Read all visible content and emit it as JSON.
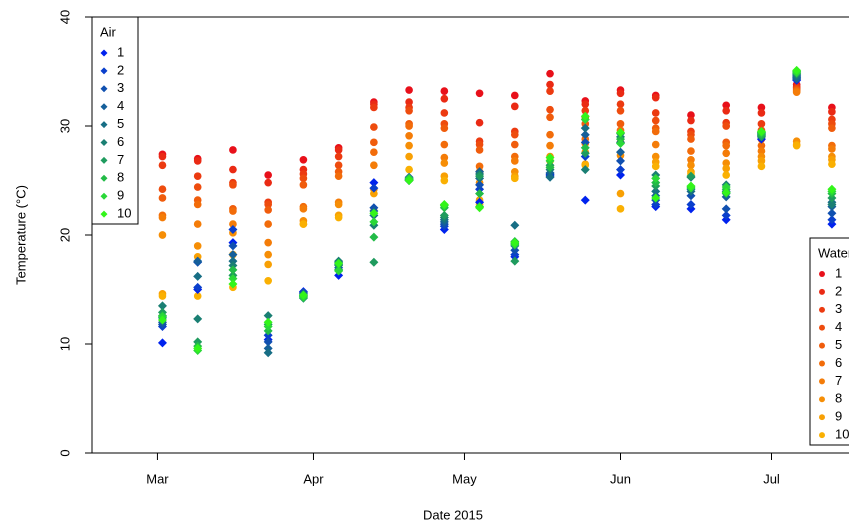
{
  "chart_data": {
    "type": "scatter",
    "x_label": "Date 2015",
    "y_label": "Temperature (°C)",
    "x": [
      "2015-03-02",
      "2015-03-09",
      "2015-03-16",
      "2015-03-23",
      "2015-03-30",
      "2015-04-06",
      "2015-04-13",
      "2015-04-20",
      "2015-04-27",
      "2015-05-04",
      "2015-05-11",
      "2015-05-18",
      "2015-05-25",
      "2015-06-01",
      "2015-06-08",
      "2015-06-15",
      "2015-06-22",
      "2015-06-29",
      "2015-07-06",
      "2015-07-13"
    ],
    "xlim": [
      "2015-02-16",
      "2015-07-16"
    ],
    "xticks": [
      {
        "value": "2015-03-01",
        "label": "Mar"
      },
      {
        "value": "2015-04-01",
        "label": "Apr"
      },
      {
        "value": "2015-05-01",
        "label": "May"
      },
      {
        "value": "2015-06-01",
        "label": "Jun"
      },
      {
        "value": "2015-07-01",
        "label": "Jul"
      }
    ],
    "ylim": [
      0,
      40
    ],
    "yticks": [
      0,
      10,
      20,
      30,
      40
    ],
    "series_groups": [
      {
        "title": "Water",
        "marker": "circle",
        "legend": "right",
        "series": [
          {
            "name": "1",
            "color": "#e8101a",
            "values": [
              27.4,
              27,
              27.8,
              25.5,
              26.9,
              28,
              32.2,
              33.3,
              33.2,
              33,
              32.8,
              34.8,
              32.3,
              33.3,
              32.8,
              31,
              31.9,
              31.7,
              33.8,
              31.7
            ]
          },
          {
            "name": "2",
            "color": "#ea2a14",
            "values": [
              27.2,
              26.8,
              26,
              24.8,
              26,
              27.8,
              32,
              32.2,
              32.5,
              30.3,
              31.8,
              33.8,
              32,
              33,
              32.6,
              30.5,
              31.4,
              31.2,
              33.6,
              31.3
            ]
          },
          {
            "name": "3",
            "color": "#ec3a10",
            "values": [
              26.4,
              25.4,
              24.8,
              23,
              25.6,
              27.2,
              31.7,
              31.7,
              31.2,
              28.6,
              29.5,
              33.2,
              31.4,
              32,
              31.2,
              29.5,
              30.3,
              30.2,
              33.5,
              30.6
            ]
          },
          {
            "name": "4",
            "color": "#ee4c0e",
            "values": [
              24.2,
              24.4,
              24.6,
              22.8,
              25.2,
              26.4,
              29.9,
              31.4,
              30.2,
              28.3,
              29.2,
              31.5,
              30.8,
              31.4,
              30.5,
              29.2,
              30,
              29.6,
              33.4,
              30.2
            ]
          },
          {
            "name": "5",
            "color": "#f05c0c",
            "values": [
              23.4,
              23.2,
              22.4,
              22.3,
              24.6,
              25.8,
              28.5,
              30.2,
              29.8,
              27.8,
              28.3,
              30.8,
              30.2,
              30.2,
              29.8,
              28.8,
              28.5,
              28.8,
              33.3,
              29.8
            ]
          },
          {
            "name": "6",
            "color": "#f26c0a",
            "values": [
              21.8,
              22.8,
              22.2,
              21,
              22.6,
              25.4,
              27.6,
              30,
              28.3,
              26.3,
              27.2,
              29.2,
              28.8,
              29.6,
              29.5,
              27.7,
              28.2,
              28.2,
              33.2,
              28.2
            ]
          },
          {
            "name": "7",
            "color": "#f47c08",
            "values": [
              21.6,
              21,
              21,
              19.3,
              22.4,
              23,
              26.4,
              29.1,
              27.1,
              25.8,
              26.8,
              28.2,
              28.4,
              28.5,
              28.3,
              26.9,
              27.5,
              27.7,
              33.1,
              27.9
            ]
          },
          {
            "name": "8",
            "color": "#f68e06",
            "values": [
              20,
              19,
              20.2,
              18.2,
              21.3,
              22.8,
              24.2,
              28.2,
              26.6,
              24.8,
              25.8,
              27.2,
              27.6,
              27.3,
              27.2,
              26.4,
              26.6,
              27.2,
              28.6,
              27.2
            ]
          },
          {
            "name": "9",
            "color": "#f8a004",
            "values": [
              14.6,
              18,
              18.2,
              17.3,
              21,
              21.8,
              23.8,
              27.2,
              25.4,
              23.2,
              25.4,
              26.8,
              26.5,
              23.8,
              26.7,
              25.8,
              26.1,
              26.8,
              28.3,
              26.9
            ]
          },
          {
            "name": "10",
            "color": "#fab002",
            "values": [
              14.4,
              14.4,
              15.2,
              15.8,
              21,
              21.6,
              22.2,
              26,
              25,
              22.8,
              25.2,
              26.2,
              26.4,
              22.4,
              26.3,
              25.6,
              25.5,
              26.3,
              28.2,
              26.5
            ]
          }
        ]
      },
      {
        "title": "Air",
        "marker": "diamond",
        "legend": "top-left",
        "series": [
          {
            "name": "1",
            "color": "#0022ee",
            "values": [
              10.1,
              15,
              19.3,
              10.4,
              14.8,
              16.3,
              24.8,
              25.1,
              20.5,
              23,
              18,
              25.5,
              23.2,
              25.5,
              22.6,
              22.4,
              21.4,
              28.8,
              34.2,
              21
            ]
          },
          {
            "name": "2",
            "color": "#0a3fcc",
            "values": [
              11.6,
              15.2,
              20.5,
              10.8,
              14.6,
              16.8,
              24.3,
              25,
              20.8,
              24.2,
              18.2,
              25.6,
              27.2,
              26,
              22.8,
              22.8,
              21.8,
              29,
              34.4,
              21.4
            ]
          },
          {
            "name": "3",
            "color": "#1050b0",
            "values": [
              11.8,
              17.5,
              19,
              10.2,
              14.4,
              17,
              22.5,
              25.2,
              21,
              24.6,
              18.6,
              25.4,
              28.5,
              26.8,
              23.2,
              23.6,
              22.4,
              29.2,
              34.6,
              22
            ]
          },
          {
            "name": "4",
            "color": "#155f9a",
            "values": [
              12,
              17.6,
              18.2,
              9.6,
              14.7,
              17.3,
              22.2,
              25.3,
              21.2,
              25.8,
              19,
              25.7,
              29.2,
              27.6,
              23.6,
              24.2,
              23.5,
              29.4,
              34.3,
              22.6
            ]
          },
          {
            "name": "5",
            "color": "#176e85",
            "values": [
              12.4,
              16.2,
              17.6,
              9.2,
              14.3,
              17.5,
              21.8,
              25,
              21.4,
              25.2,
              20.9,
              25.3,
              29.8,
              28.5,
              24,
              24,
              24,
              29.3,
              34.5,
              23
            ]
          },
          {
            "name": "6",
            "color": "#1a7f73",
            "values": [
              13.5,
              12.3,
              17.2,
              12.6,
              14.5,
              17.6,
              20.9,
              25.1,
              21.6,
              25.6,
              19.2,
              26,
              26,
              29,
              25.5,
              25.3,
              24.6,
              29.1,
              34.7,
              22.8
            ]
          },
          {
            "name": "7",
            "color": "#1f9b5e",
            "values": [
              12.9,
              10.2,
              16.3,
              11.8,
              14.2,
              17.2,
              17.5,
              25,
              21.8,
              25.4,
              17.6,
              26.4,
              27.5,
              29.3,
              24.5,
              25.4,
              23.8,
              29,
              34.8,
              23.4
            ]
          },
          {
            "name": "8",
            "color": "#22bb47",
            "values": [
              12.6,
              9.8,
              16.8,
              11.2,
              14.4,
              16.8,
              19.8,
              25.1,
              22.5,
              23.8,
              19.4,
              26.2,
              28,
              28.8,
              24.8,
              24.4,
              24.2,
              29.2,
              35,
              23.8
            ]
          },
          {
            "name": "9",
            "color": "#2ad838",
            "values": [
              12.5,
              9.4,
              16,
              11.6,
              14.3,
              16.7,
              21.2,
              25.2,
              22.7,
              22.6,
              19.1,
              26.8,
              30.6,
              28.4,
              25.2,
              24.3,
              24.4,
              29.4,
              34.9,
              24
            ]
          },
          {
            "name": "10",
            "color": "#33f51a",
            "values": [
              12.2,
              9.6,
              15.5,
              12,
              14.5,
              17.4,
              22,
              25,
              22.8,
              22.5,
              19.3,
              27.1,
              30.9,
              29.4,
              23.4,
              24.5,
              23.9,
              29.5,
              35.1,
              24.2
            ]
          }
        ]
      }
    ]
  }
}
